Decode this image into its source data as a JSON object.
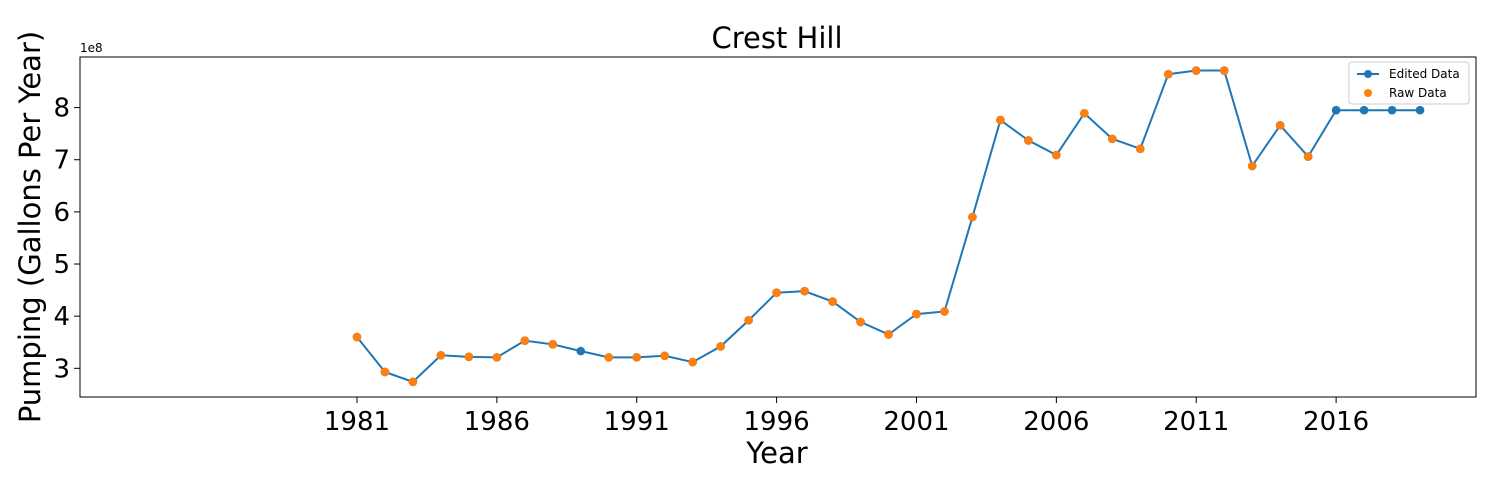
{
  "chart_data": {
    "type": "line",
    "title": "Crest Hill",
    "xlabel": "Year",
    "ylabel": "Pumping (Gallons Per Year)",
    "y_offset_text": "1e8",
    "x_ticks": [
      1981,
      1986,
      1991,
      1996,
      2001,
      2006,
      2011,
      2016
    ],
    "y_ticks": [
      3,
      4,
      5,
      6,
      7,
      8
    ],
    "xlim": [
      1971.1,
      2021.0
    ],
    "ylim": [
      2.45,
      8.97
    ],
    "legend_position": "top-right",
    "grid": false,
    "series": [
      {
        "name": "Edited Data",
        "style": "line-markers",
        "color": "#1f77b4",
        "x": [
          1981,
          1982,
          1983,
          1984,
          1985,
          1986,
          1987,
          1988,
          1989,
          1990,
          1991,
          1992,
          1993,
          1994,
          1995,
          1996,
          1997,
          1998,
          1999,
          2000,
          2001,
          2002,
          2003,
          2004,
          2005,
          2006,
          2007,
          2008,
          2009,
          2010,
          2011,
          2012,
          2013,
          2014,
          2015,
          2016,
          2017,
          2018,
          2019
        ],
        "y": [
          3.6,
          2.93,
          2.74,
          3.25,
          3.22,
          3.21,
          3.53,
          3.46,
          3.33,
          3.21,
          3.21,
          3.24,
          3.12,
          3.42,
          3.92,
          4.45,
          4.48,
          4.28,
          3.89,
          3.65,
          4.04,
          4.09,
          5.9,
          7.76,
          7.37,
          7.09,
          7.89,
          7.4,
          7.21,
          8.64,
          8.71,
          8.71,
          6.88,
          7.66,
          7.06,
          7.95,
          7.95,
          7.95,
          7.95
        ]
      },
      {
        "name": "Raw Data",
        "style": "markers",
        "color": "#ff7f0e",
        "x": [
          1981,
          1982,
          1983,
          1984,
          1985,
          1986,
          1987,
          1988,
          1990,
          1991,
          1992,
          1993,
          1994,
          1995,
          1996,
          1997,
          1998,
          1999,
          2000,
          2001,
          2002,
          2003,
          2004,
          2005,
          2006,
          2007,
          2008,
          2009,
          2010,
          2011,
          2012,
          2013,
          2014,
          2015
        ],
        "y": [
          3.6,
          2.93,
          2.74,
          3.25,
          3.22,
          3.21,
          3.53,
          3.46,
          3.21,
          3.21,
          3.24,
          3.12,
          3.42,
          3.92,
          4.45,
          4.48,
          4.28,
          3.89,
          3.65,
          4.04,
          4.09,
          5.9,
          7.76,
          7.37,
          7.09,
          7.89,
          7.4,
          7.21,
          8.64,
          8.71,
          8.71,
          6.88,
          7.66,
          7.06
        ]
      }
    ]
  }
}
